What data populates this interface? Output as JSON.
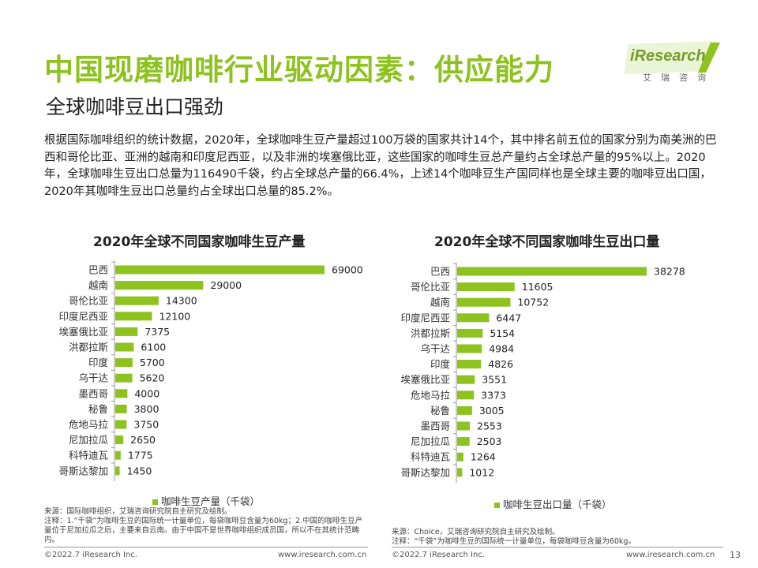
{
  "header": {
    "title": "中国现磨咖啡行业驱动因素：供应能力",
    "subtitle": "全球咖啡豆出口强劲",
    "logo_text": "iResearch",
    "logo_sub": "艾瑞咨询"
  },
  "body_text": "根据国际咖啡组织的统计数据，2020年，全球咖啡生豆产量超过100万袋的国家共计14个，其中排名前五位的国家分别为南美洲的巴西和哥伦比亚、亚洲的越南和印度尼西亚，以及非洲的埃塞俄比亚，这些国家的咖啡生豆总产量约占全球总产量的95%以上。2020年，全球咖啡生豆出口总量为116490千袋，约占全球总产量的66.4%，上述14个咖啡豆生产国同样也是全球主要的咖啡豆出口国，2020年其咖啡生豆出口总量约占全球出口总量的85.2%。",
  "colors": {
    "accent": "#8dc21f"
  },
  "chart_data": [
    {
      "type": "bar",
      "orientation": "horizontal",
      "title": "2020年全球不同国家咖啡生豆产量",
      "categories": [
        "巴西",
        "越南",
        "哥伦比亚",
        "印度尼西亚",
        "埃塞俄比亚",
        "洪都拉斯",
        "印度",
        "乌干达",
        "墨西哥",
        "秘鲁",
        "危地马拉",
        "尼加拉瓜",
        "科特迪瓦",
        "哥斯达黎加"
      ],
      "series": [
        {
          "name": "咖啡生豆产量（千袋）",
          "values": [
            69000,
            29000,
            14300,
            12100,
            7375,
            6100,
            5700,
            5620,
            4000,
            3800,
            3750,
            2650,
            1775,
            1450
          ]
        }
      ],
      "xlim": [
        0,
        69000
      ],
      "legend_position": "bottom-left"
    },
    {
      "type": "bar",
      "orientation": "horizontal",
      "title": "2020年全球不同国家咖啡生豆出口量",
      "categories": [
        "巴西",
        "哥伦比亚",
        "越南",
        "印度尼西亚",
        "洪都拉斯",
        "乌干达",
        "印度",
        "埃塞俄比亚",
        "危地马拉",
        "秘鲁",
        "墨西哥",
        "尼加拉瓜",
        "科特迪瓦",
        "哥斯达黎加"
      ],
      "series": [
        {
          "name": "咖啡生豆出口量（千袋）",
          "values": [
            38278,
            11605,
            10752,
            6447,
            5154,
            4984,
            4826,
            3551,
            3373,
            3005,
            2553,
            2503,
            1264,
            1012
          ]
        }
      ],
      "xlim": [
        0,
        38278
      ],
      "legend_position": "bottom-center"
    }
  ],
  "notes": {
    "left": "来源：国际咖啡组织，艾瑞咨询研究院自主研究及绘制。\n注释：1.“千袋”为咖啡生豆的国际统一计量单位，每袋咖啡豆含量为60kg；2.中国的咖啡生豆产量位于尼加拉瓜之后，主要来自云南。由于中国不是世界咖啡组织成员国，所以不在其统计范畴内。",
    "right": "来源：Choice，艾瑞咨询研究院自主研究及绘制。\n注释：“千袋”为咖啡生豆的国际统一计量单位，每袋咖啡豆含量为60kg。"
  },
  "footer": {
    "left_copyright": "©2022.7 iResearch Inc.",
    "left_url": "www.iresearch.com.cn",
    "right_copyright": "©2022.7 iResearch Inc.",
    "right_url": "www.iresearch.com.cn",
    "page_number": "13"
  }
}
